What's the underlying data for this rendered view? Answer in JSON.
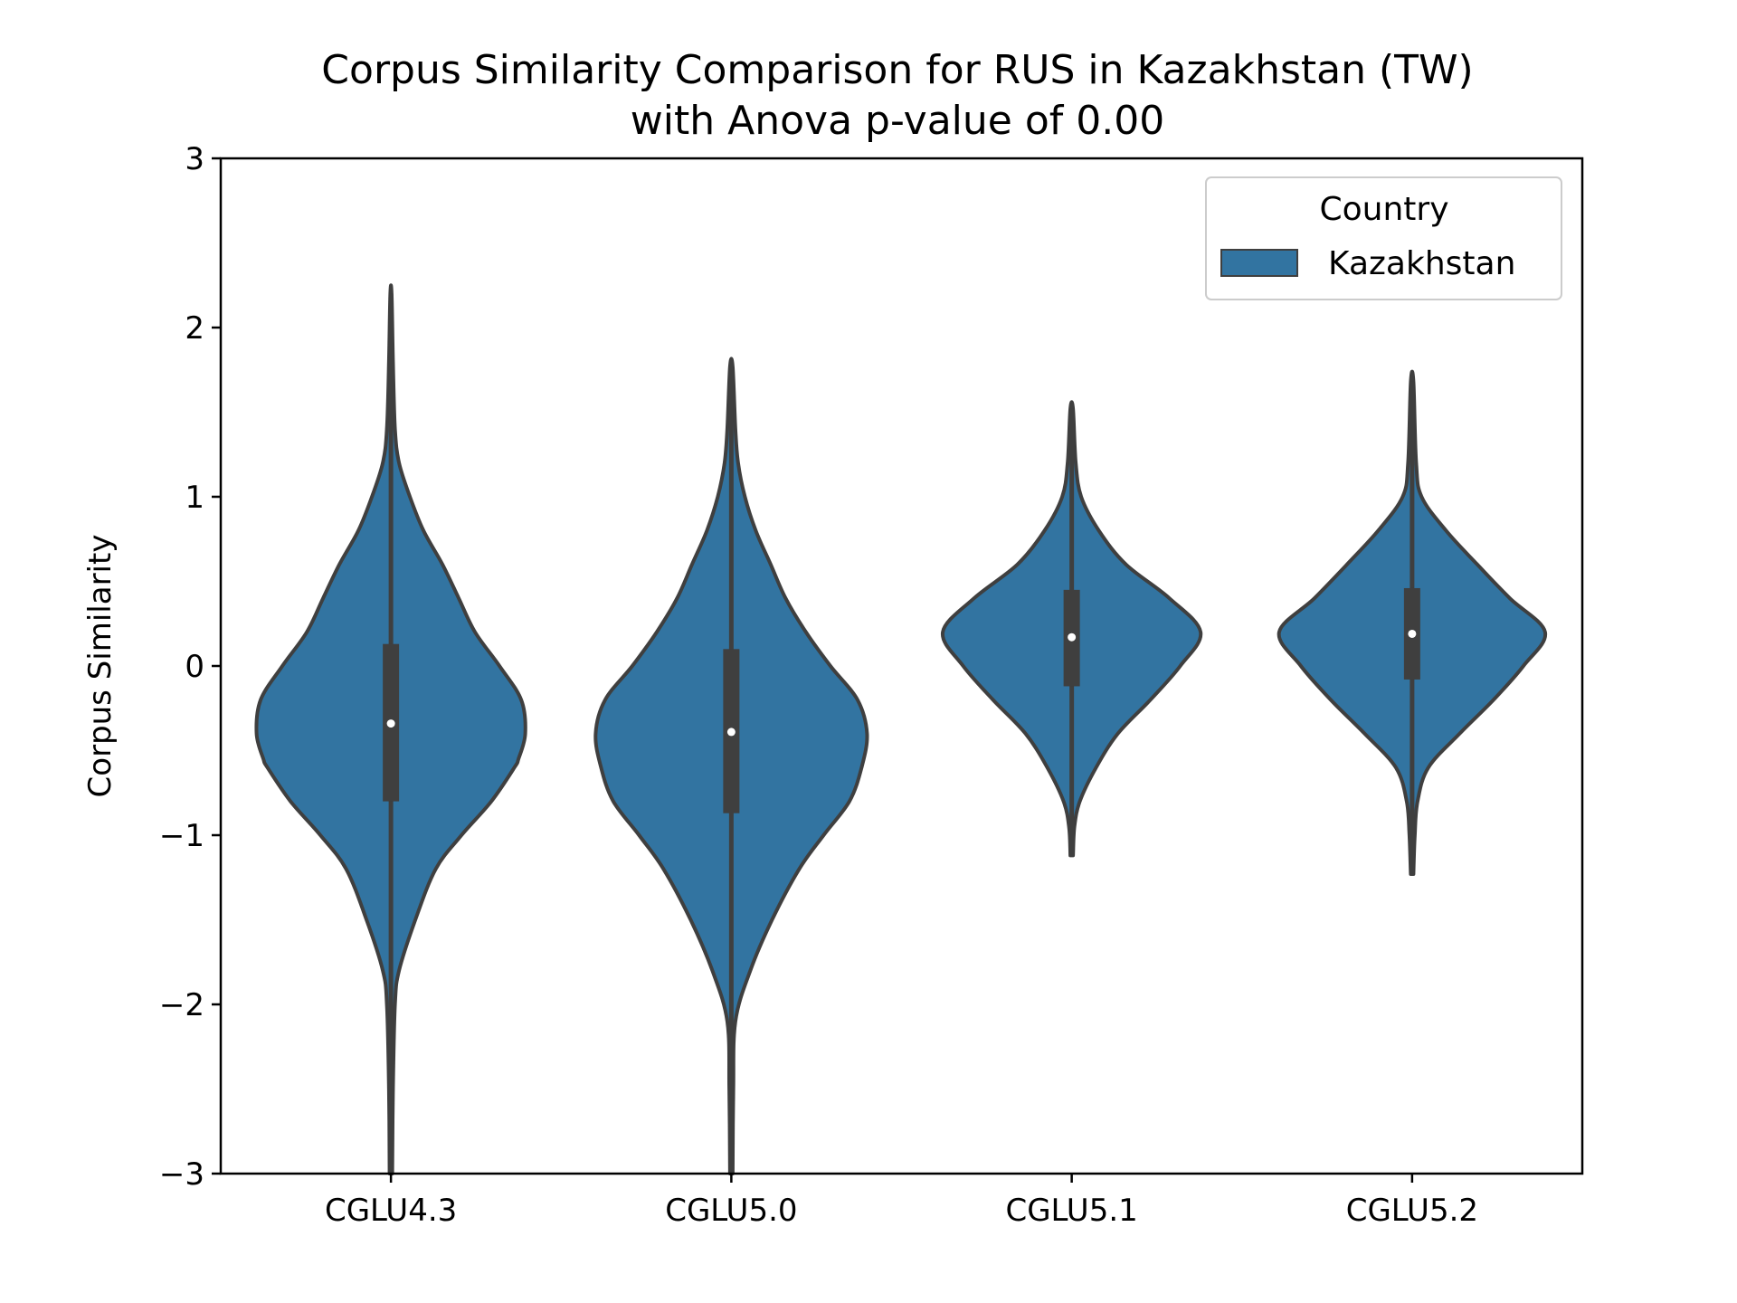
{
  "chart_data": {
    "type": "violin",
    "title": "Corpus Similarity Comparison for RUS in Kazakhstan (TW)",
    "subtitle": "with Anova p-value of 0.00",
    "xlabel": "",
    "ylabel": "Corpus Similarity",
    "ylim": [
      -3,
      3
    ],
    "yticks": [
      -3,
      -2,
      -1,
      0,
      1,
      2,
      3
    ],
    "ytick_labels": [
      "−3",
      "−2",
      "−1",
      "0",
      "1",
      "2",
      "3"
    ],
    "categories": [
      "CGLU4.3",
      "CGLU5.0",
      "CGLU5.1",
      "CGLU5.2"
    ],
    "grid": false,
    "legend": {
      "title": "Country",
      "placement": "top-right",
      "entries": [
        "Kazakhstan"
      ]
    },
    "series": [
      {
        "name": "Kazakhstan",
        "color": "#3274a1",
        "violins": [
          {
            "category": "CGLU4.3",
            "min": -3.0,
            "max": 2.2,
            "q1": -0.8,
            "median": -0.34,
            "q3": 0.13,
            "density": [
              [
                -3.0,
                0.01
              ],
              [
                -2.5,
                0.015
              ],
              [
                -2.0,
                0.03
              ],
              [
                -1.8,
                0.06
              ],
              [
                -1.5,
                0.18
              ],
              [
                -1.2,
                0.33
              ],
              [
                -1.0,
                0.52
              ],
              [
                -0.8,
                0.74
              ],
              [
                -0.6,
                0.91
              ],
              [
                -0.55,
                0.94
              ],
              [
                -0.4,
                0.99
              ],
              [
                -0.2,
                0.96
              ],
              [
                0.0,
                0.8
              ],
              [
                0.2,
                0.62
              ],
              [
                0.4,
                0.5
              ],
              [
                0.6,
                0.38
              ],
              [
                0.8,
                0.24
              ],
              [
                1.0,
                0.14
              ],
              [
                1.2,
                0.06
              ],
              [
                1.4,
                0.03
              ],
              [
                1.8,
                0.015
              ],
              [
                2.2,
                0.005
              ]
            ]
          },
          {
            "category": "CGLU5.0",
            "min": -3.0,
            "max": 1.77,
            "q1": -0.87,
            "median": -0.39,
            "q3": 0.1,
            "density": [
              [
                -3.0,
                0.01
              ],
              [
                -2.5,
                0.015
              ],
              [
                -2.1,
                0.03
              ],
              [
                -1.8,
                0.14
              ],
              [
                -1.5,
                0.3
              ],
              [
                -1.2,
                0.5
              ],
              [
                -1.0,
                0.68
              ],
              [
                -0.8,
                0.87
              ],
              [
                -0.6,
                0.96
              ],
              [
                -0.4,
                1.0
              ],
              [
                -0.2,
                0.93
              ],
              [
                0.0,
                0.73
              ],
              [
                0.2,
                0.55
              ],
              [
                0.4,
                0.4
              ],
              [
                0.6,
                0.29
              ],
              [
                0.8,
                0.18
              ],
              [
                1.0,
                0.1
              ],
              [
                1.2,
                0.05
              ],
              [
                1.4,
                0.03
              ],
              [
                1.77,
                0.01
              ]
            ]
          },
          {
            "category": "CGLU5.1",
            "min": -1.12,
            "max": 1.52,
            "q1": -0.12,
            "median": 0.17,
            "q3": 0.45,
            "density": [
              [
                -1.12,
                0.01
              ],
              [
                -0.95,
                0.02
              ],
              [
                -0.8,
                0.06
              ],
              [
                -0.6,
                0.18
              ],
              [
                -0.4,
                0.34
              ],
              [
                -0.2,
                0.58
              ],
              [
                0.0,
                0.8
              ],
              [
                0.2,
                0.95
              ],
              [
                0.4,
                0.72
              ],
              [
                0.6,
                0.4
              ],
              [
                0.8,
                0.2
              ],
              [
                1.0,
                0.07
              ],
              [
                1.2,
                0.03
              ],
              [
                1.52,
                0.01
              ]
            ]
          },
          {
            "category": "CGLU5.2",
            "min": -1.23,
            "max": 1.68,
            "q1": -0.08,
            "median": 0.19,
            "q3": 0.46,
            "density": [
              [
                -1.23,
                0.01
              ],
              [
                -1.0,
                0.02
              ],
              [
                -0.8,
                0.04
              ],
              [
                -0.6,
                0.12
              ],
              [
                -0.4,
                0.35
              ],
              [
                -0.2,
                0.6
              ],
              [
                0.0,
                0.82
              ],
              [
                0.2,
                0.98
              ],
              [
                0.4,
                0.72
              ],
              [
                0.6,
                0.48
              ],
              [
                0.8,
                0.25
              ],
              [
                1.0,
                0.07
              ],
              [
                1.2,
                0.03
              ],
              [
                1.68,
                0.01
              ]
            ]
          }
        ]
      }
    ]
  }
}
